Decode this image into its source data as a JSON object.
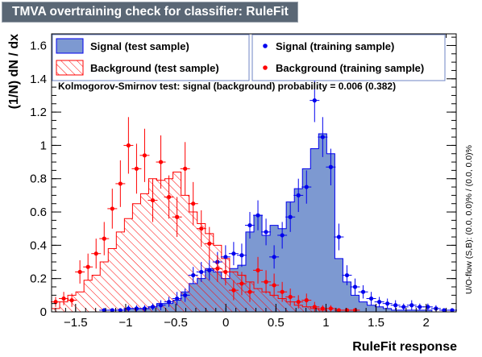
{
  "window": {
    "title": "TMVA overtraining check for classifier: RuleFit"
  },
  "colors": {
    "signal": "#0000ee",
    "signal_fill": "#7d99d1",
    "background": "#ff0000",
    "title_bar": "#5a6775"
  },
  "chart_data": {
    "type": "histogram",
    "xlabel": "RuleFit response",
    "ylabel": "(1/N) dN / dx",
    "right_label": "U/O-flow (S,B): (0.0, 0.0)% / (0.0, 0.0)%",
    "ks_text": "Kolmogorov-Smirnov test: signal (background) probability = 0.006 (0.382)",
    "xlim": [
      -1.74,
      2.3
    ],
    "ylim": [
      0,
      1.67
    ],
    "x_ticks": [
      -1.5,
      -1,
      -0.5,
      0,
      0.5,
      1,
      1.5,
      2
    ],
    "x_tick_labels": [
      "−1.5",
      "−1",
      "−0.5",
      "0",
      "0.5",
      "1",
      "1.5",
      "2"
    ],
    "y_ticks": [
      0,
      0.2,
      0.4,
      0.6,
      0.8,
      1,
      1.2,
      1.4,
      1.6
    ],
    "y_tick_labels": [
      "0",
      "0.2",
      "0.4",
      "0.6",
      "0.8",
      "1",
      "1.2",
      "1.4",
      "1.6"
    ],
    "legend": [
      {
        "label": "Signal (test sample)",
        "style": "signal-fill"
      },
      {
        "label": "Signal (training sample)",
        "style": "signal-marker"
      },
      {
        "label": "Background (test sample)",
        "style": "background-hatch"
      },
      {
        "label": "Background (training sample)",
        "style": "background-marker"
      }
    ],
    "bin_edges_start": -1.74,
    "bin_width": 0.0808,
    "series": [
      {
        "name": "Signal (test sample)",
        "kind": "histogram",
        "values": [
          0,
          0,
          0,
          0,
          0,
          0,
          0,
          0,
          0,
          0.02,
          0.02,
          0.02,
          0.03,
          0.05,
          0.05,
          0.07,
          0.12,
          0.17,
          0.2,
          0.26,
          0.24,
          0.2,
          0.26,
          0.28,
          0.48,
          0.58,
          0.46,
          0.52,
          0.5,
          0.66,
          0.74,
          0.86,
          0.98,
          1.07,
          0.95,
          0.32,
          0.18,
          0.1,
          0.06,
          0.04,
          0.03,
          0.02,
          0.01,
          0.01,
          0.01,
          0.01,
          0.01,
          0,
          0,
          0
        ]
      },
      {
        "name": "Background (test sample)",
        "kind": "histogram",
        "values": [
          0.02,
          0.06,
          0.1,
          0.12,
          0.19,
          0.22,
          0.3,
          0.38,
          0.48,
          0.56,
          0.65,
          0.71,
          0.8,
          0.79,
          0.8,
          0.84,
          0.7,
          0.6,
          0.53,
          0.47,
          0.4,
          0.32,
          0.24,
          0.22,
          0.18,
          0.14,
          0.12,
          0.1,
          0.08,
          0.06,
          0.04,
          0.03,
          0.02,
          0.01,
          0,
          0,
          0,
          0,
          0,
          0,
          0,
          0,
          0,
          0,
          0,
          0,
          0,
          0,
          0,
          0
        ]
      },
      {
        "name": "Signal (training sample)",
        "kind": "points",
        "values": [
          0,
          0,
          0,
          0,
          0,
          0,
          0.01,
          0.01,
          0.01,
          0.02,
          0.02,
          0.02,
          0.03,
          0.04,
          0.06,
          0.08,
          0.1,
          0.22,
          0.24,
          0.25,
          0.3,
          0.33,
          0.35,
          0.34,
          0.52,
          0.58,
          0.48,
          0.33,
          0.46,
          0.57,
          0.7,
          0.75,
          1.27,
          1.05,
          0.87,
          0.45,
          0.22,
          0.15,
          0.12,
          0.08,
          0.06,
          0.05,
          0.04,
          0.03,
          0.04,
          0.03,
          0.03,
          0.02,
          0.01,
          0.01
        ],
        "errors": [
          0,
          0,
          0,
          0,
          0,
          0,
          0.01,
          0.01,
          0.01,
          0.02,
          0.02,
          0.02,
          0.02,
          0.03,
          0.03,
          0.04,
          0.04,
          0.05,
          0.06,
          0.06,
          0.06,
          0.07,
          0.07,
          0.07,
          0.08,
          0.09,
          0.08,
          0.07,
          0.08,
          0.09,
          0.1,
          0.1,
          0.13,
          0.12,
          0.11,
          0.08,
          0.06,
          0.05,
          0.04,
          0.04,
          0.03,
          0.03,
          0.03,
          0.02,
          0.03,
          0.02,
          0.02,
          0.02,
          0.01,
          0.01
        ]
      },
      {
        "name": "Background (training sample)",
        "kind": "points",
        "values": [
          0.06,
          0.08,
          0.07,
          0.24,
          0.27,
          0.35,
          0.44,
          0.62,
          0.77,
          1.0,
          0.86,
          0.94,
          0.67,
          0.9,
          0.69,
          0.57,
          0.86,
          0.65,
          0.5,
          0.41,
          0.26,
          0.24,
          0.13,
          0.17,
          0.12,
          0.25,
          0.18,
          0.16,
          0.12,
          0.09,
          0.06,
          0.07,
          0.03,
          0.02,
          0.02,
          0.01,
          0.01,
          0.01,
          0,
          0,
          0,
          0,
          0,
          0,
          0,
          0,
          0,
          0,
          0,
          0
        ],
        "errors": [
          0.03,
          0.04,
          0.04,
          0.07,
          0.08,
          0.09,
          0.1,
          0.12,
          0.14,
          0.17,
          0.15,
          0.16,
          0.13,
          0.16,
          0.13,
          0.12,
          0.16,
          0.13,
          0.11,
          0.1,
          0.08,
          0.08,
          0.06,
          0.07,
          0.06,
          0.08,
          0.07,
          0.07,
          0.06,
          0.05,
          0.04,
          0.04,
          0.03,
          0.02,
          0.02,
          0.01,
          0.01,
          0.01,
          0,
          0,
          0,
          0,
          0,
          0,
          0,
          0,
          0,
          0,
          0,
          0
        ]
      }
    ]
  }
}
